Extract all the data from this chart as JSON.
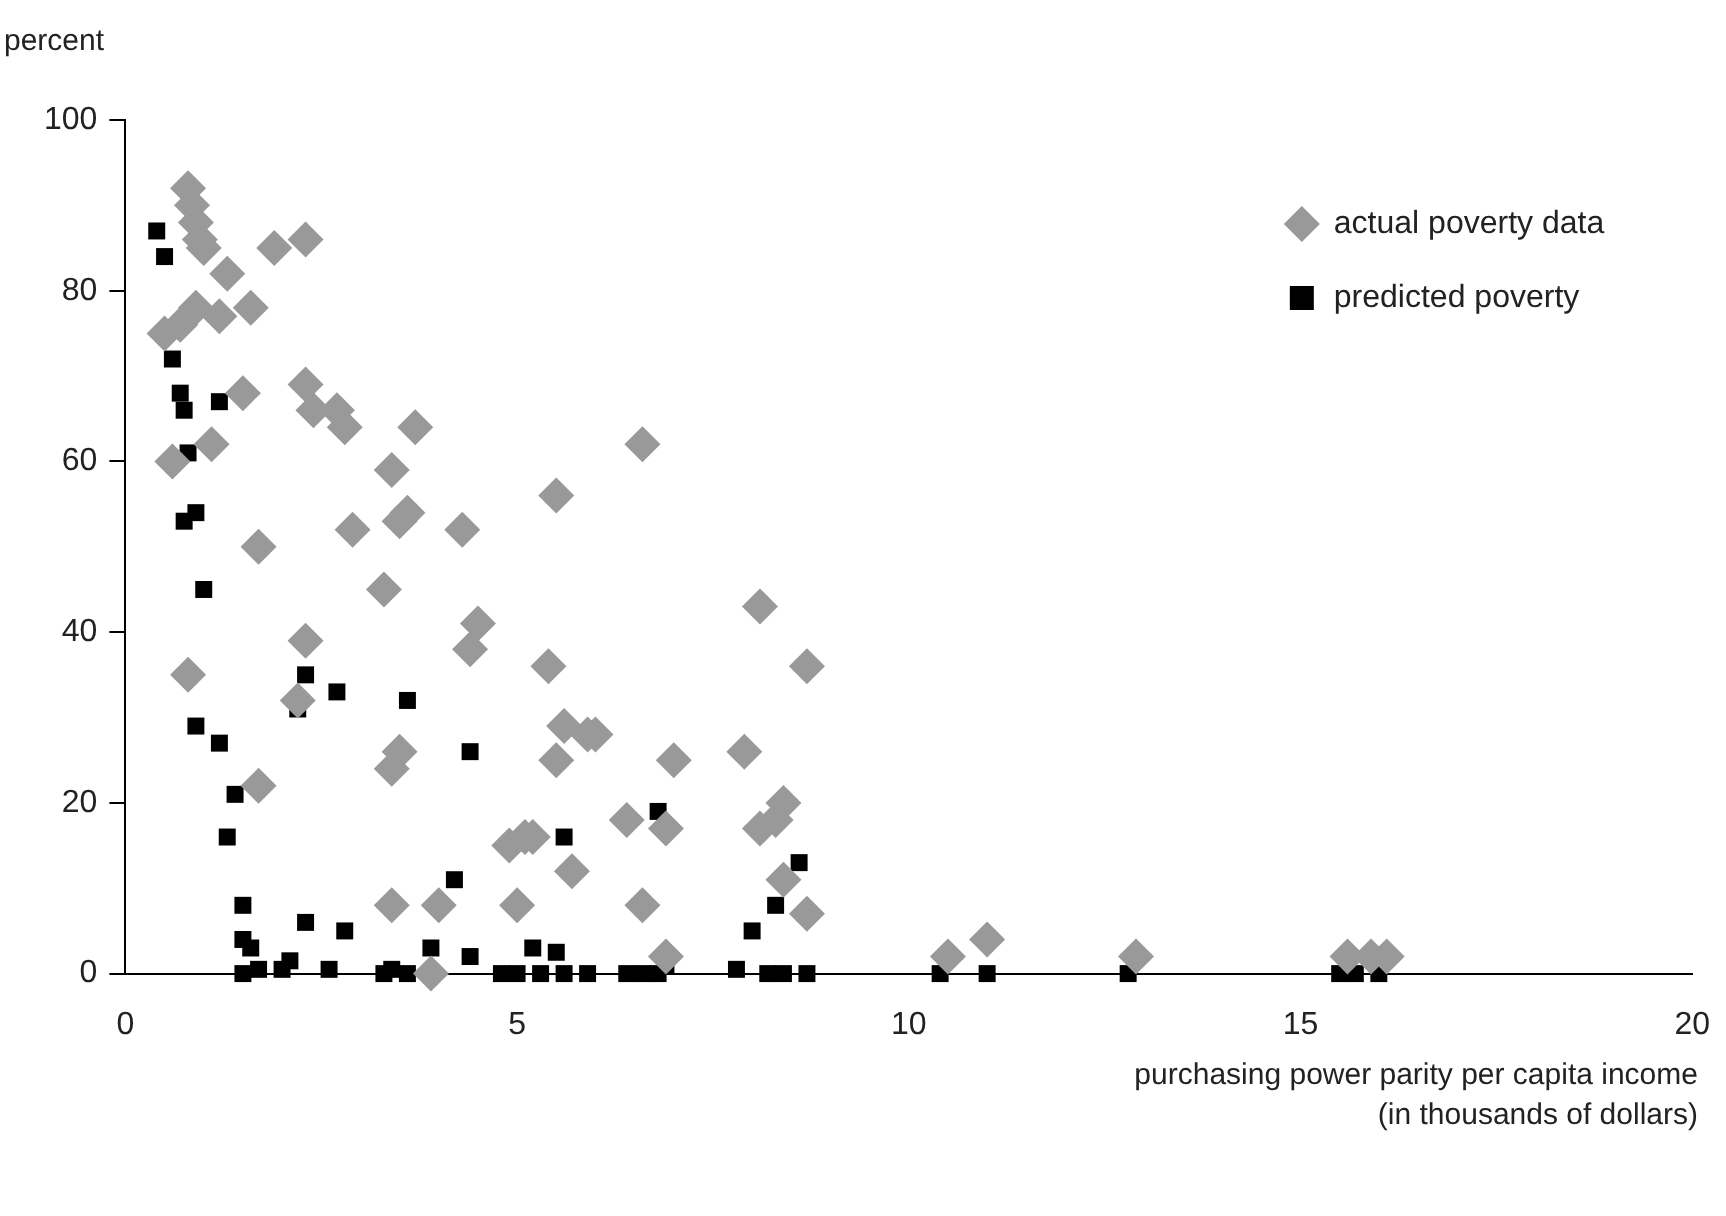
{
  "chart_data": {
    "type": "scatter",
    "ylabel": "percent",
    "xlabel": "purchasing power parity per capita income\n(in thousands of dollars)",
    "xlim": [
      0,
      20
    ],
    "xticks": [
      0,
      5,
      10,
      15,
      20
    ],
    "ylim": [
      0,
      100
    ],
    "yticks": [
      0,
      20,
      40,
      60,
      80,
      100
    ],
    "grid": false,
    "legend": "top right",
    "series": [
      {
        "name": "actual poverty data",
        "color": "#999999",
        "marker": "diamond",
        "x": [
          0.8,
          0.85,
          0.9,
          0.95,
          1.0,
          1.3,
          1.9,
          2.3,
          0.5,
          0.7,
          0.9,
          1.2,
          1.6,
          1.5,
          1.1,
          0.6,
          2.3,
          2.4,
          2.7,
          2.8,
          3.7,
          2.9,
          3.4,
          3.5,
          3.6,
          3.3,
          1.7,
          0.8,
          2.3,
          2.2,
          1.7,
          3.4,
          3.5,
          4.3,
          4.5,
          4.4,
          5.5,
          6.6,
          5.4,
          5.6,
          5.5,
          5.9,
          6.0,
          5.7,
          4.9,
          5.1,
          5.2,
          5.0,
          3.4,
          4.0,
          3.9,
          6.4,
          6.6,
          6.9,
          7.0,
          6.9,
          8.1,
          8.7,
          7.9,
          8.4,
          8.3,
          8.1,
          8.4,
          8.7,
          10.5,
          11.0,
          12.9,
          15.6,
          15.9,
          16.1
        ],
        "values": [
          92,
          90,
          88,
          86,
          85,
          82,
          85,
          86,
          75,
          76,
          78,
          77,
          78,
          68,
          62,
          60,
          69,
          66,
          66,
          64,
          64,
          52,
          59,
          53,
          54,
          45,
          50,
          35,
          39,
          32,
          22,
          24,
          26,
          52,
          41,
          38,
          56,
          62,
          36,
          29,
          25,
          28,
          28,
          12,
          15,
          16,
          16,
          8,
          8,
          8,
          0,
          18,
          8,
          17,
          25,
          2,
          43,
          36,
          26,
          20,
          18,
          17,
          11,
          7,
          2,
          4,
          2,
          2,
          2,
          2
        ]
      },
      {
        "name": "predicted poverty",
        "color": "#000000",
        "marker": "square",
        "x": [
          0.4,
          0.5,
          0.6,
          0.7,
          0.75,
          0.8,
          0.75,
          0.9,
          1.2,
          1.0,
          0.9,
          1.2,
          1.3,
          1.4,
          2.2,
          2.3,
          2.7,
          3.6,
          4.4,
          5.6,
          6.8,
          4.2,
          8.6,
          8.3,
          8.0,
          1.5,
          1.5,
          1.6,
          2.3,
          2.8,
          4.4,
          3.9,
          5.2,
          5.5,
          1.5,
          1.7,
          2.0,
          2.1,
          2.6,
          3.3,
          3.4,
          3.6,
          4.8,
          5.0,
          5.3,
          5.6,
          5.9,
          6.4,
          6.6,
          6.8,
          6.9,
          7.8,
          8.2,
          8.4,
          8.7,
          10.4,
          11.0,
          12.8,
          15.5,
          15.7,
          16.0
        ],
        "values": [
          87,
          84,
          72,
          68,
          66,
          61,
          53,
          54,
          67,
          45,
          29,
          27,
          16,
          21,
          31,
          35,
          33,
          32,
          26,
          16,
          19,
          11,
          13,
          8,
          5,
          8,
          4,
          3,
          6,
          5,
          2,
          3,
          3,
          2.5,
          0,
          0.5,
          0.5,
          1.5,
          0.5,
          0,
          0.5,
          0,
          0,
          0,
          0,
          0,
          0,
          0,
          0,
          0,
          1,
          0.5,
          0,
          0,
          0,
          0,
          0,
          0,
          0,
          0,
          0
        ]
      }
    ]
  }
}
